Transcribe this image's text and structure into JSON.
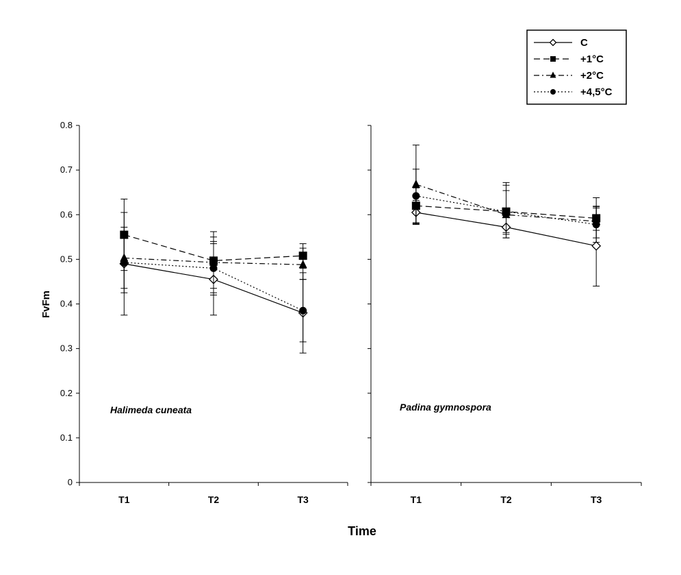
{
  "chart_data": {
    "type": "line",
    "ylabel": "FvFm",
    "xlabel": "Time",
    "ylim": [
      0,
      0.8
    ],
    "yticks": [
      "0",
      "0.1",
      "0.2",
      "0.3",
      "0.4",
      "0.5",
      "0.6",
      "0.7",
      "0.8"
    ],
    "categories": [
      "T1",
      "T2",
      "T3"
    ],
    "legend": {
      "position": "top-right",
      "entries": [
        {
          "name": "C",
          "marker": "diamond-open",
          "dash": "solid"
        },
        {
          "name": "+1°C",
          "marker": "square",
          "dash": "long-dash"
        },
        {
          "name": "+2°C",
          "marker": "triangle",
          "dash": "dash-dot"
        },
        {
          "name": "+4,5°C",
          "marker": "circle",
          "dash": "dotted"
        }
      ]
    },
    "panels": [
      {
        "label": "Halimeda cuneata",
        "series": [
          {
            "name": "C",
            "values": [
              0.49,
              0.455,
              0.38
            ],
            "err_low": [
              0.375,
              0.375,
              0.29
            ],
            "err_high": [
              0.605,
              0.535,
              0.47
            ]
          },
          {
            "name": "+1°C",
            "values": [
              0.555,
              0.497,
              0.508
            ],
            "err_low": [
              0.475,
              0.435,
              0.48
            ],
            "err_high": [
              0.635,
              0.562,
              0.535
            ]
          },
          {
            "name": "+2°C",
            "values": [
              0.503,
              0.493,
              0.488
            ],
            "err_low": [
              0.435,
              0.425,
              0.455
            ],
            "err_high": [
              0.572,
              0.55,
              0.525
            ]
          },
          {
            "name": "+4,5°C",
            "values": [
              0.493,
              0.48,
              0.385
            ],
            "err_low": [
              0.425,
              0.42,
              0.315
            ],
            "err_high": [
              0.56,
              0.54,
              0.455
            ]
          }
        ]
      },
      {
        "label": "Padina gymnospora",
        "series": [
          {
            "name": "C",
            "values": [
              0.605,
              0.572,
              0.53
            ],
            "err_low": [
              0.578,
              0.548,
              0.44
            ],
            "err_high": [
              0.632,
              0.598,
              0.615
            ]
          },
          {
            "name": "+1°C",
            "values": [
              0.62,
              0.607,
              0.592
            ],
            "err_low": [
              0.58,
              0.56,
              0.565
            ],
            "err_high": [
              0.66,
              0.654,
              0.619
            ]
          },
          {
            "name": "+2°C",
            "values": [
              0.668,
              0.6,
              0.585
            ],
            "err_low": [
              0.58,
              0.556,
              0.548
            ],
            "err_high": [
              0.756,
              0.672,
              0.638
            ]
          },
          {
            "name": "+4,5°C",
            "values": [
              0.642,
              0.607,
              0.578
            ],
            "err_low": [
              0.582,
              0.548,
              0.538
            ],
            "err_high": [
              0.702,
              0.666,
              0.618
            ]
          }
        ]
      }
    ]
  }
}
